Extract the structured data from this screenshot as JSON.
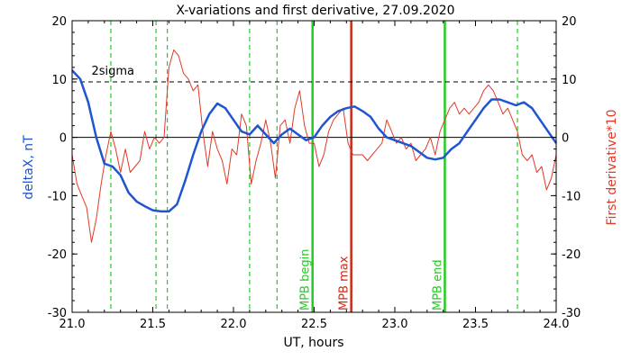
{
  "chart_data": {
    "type": "line",
    "title": "X-variations and first derivative, 27.09.2020",
    "xlabel": "UT, hours",
    "ylabel_left": "deltaX, nT",
    "ylabel_right": "First derivative*10",
    "xlim": [
      21.0,
      24.0
    ],
    "ylim": [
      -30,
      20
    ],
    "x_ticks": [
      "21.0",
      "21.5",
      "22.0",
      "22.5",
      "23.0",
      "23.5",
      "24.0"
    ],
    "y_ticks": [
      "20",
      "10",
      "0",
      "-10",
      "-20",
      "-30"
    ],
    "threshold": {
      "label": "2sigma",
      "value": 9.5
    },
    "zero_line": 0,
    "series": [
      {
        "name": "deltaX, nT",
        "color": "#1f55d0",
        "x": [
          21.0,
          21.05,
          21.1,
          21.15,
          21.2,
          21.25,
          21.3,
          21.35,
          21.4,
          21.45,
          21.5,
          21.55,
          21.6,
          21.65,
          21.7,
          21.75,
          21.8,
          21.85,
          21.9,
          21.95,
          22.0,
          22.05,
          22.1,
          22.15,
          22.2,
          22.25,
          22.3,
          22.35,
          22.4,
          22.45,
          22.5,
          22.55,
          22.6,
          22.65,
          22.7,
          22.75,
          22.8,
          22.85,
          22.9,
          22.95,
          23.0,
          23.05,
          23.1,
          23.15,
          23.2,
          23.25,
          23.3,
          23.35,
          23.4,
          23.45,
          23.5,
          23.55,
          23.6,
          23.65,
          23.7,
          23.75,
          23.8,
          23.85,
          23.9,
          23.95,
          24.0
        ],
        "values": [
          11.5,
          10.0,
          6.0,
          0.0,
          -4.5,
          -5.0,
          -6.5,
          -9.5,
          -11.0,
          -11.8,
          -12.5,
          -12.7,
          -12.7,
          -11.5,
          -7.5,
          -3.0,
          1.0,
          4.0,
          5.8,
          5.0,
          3.0,
          1.0,
          0.5,
          2.0,
          0.5,
          -1.0,
          0.5,
          1.5,
          0.5,
          -0.5,
          0.0,
          2.0,
          3.5,
          4.5,
          5.0,
          5.3,
          4.5,
          3.5,
          1.5,
          0.0,
          -0.5,
          -1.0,
          -1.5,
          -2.5,
          -3.5,
          -3.8,
          -3.5,
          -2.0,
          -1.0,
          1.0,
          3.0,
          5.0,
          6.5,
          6.5,
          6.0,
          5.5,
          6.0,
          5.0,
          3.0,
          1.0,
          -1.0
        ]
      },
      {
        "name": "First derivative*10",
        "color": "#e03a28",
        "x": [
          21.0,
          21.03,
          21.06,
          21.09,
          21.12,
          21.15,
          21.18,
          21.21,
          21.24,
          21.27,
          21.3,
          21.33,
          21.36,
          21.39,
          21.42,
          21.45,
          21.48,
          21.51,
          21.54,
          21.57,
          21.6,
          21.63,
          21.66,
          21.69,
          21.72,
          21.75,
          21.78,
          21.81,
          21.84,
          21.87,
          21.9,
          21.93,
          21.96,
          21.99,
          22.02,
          22.05,
          22.08,
          22.11,
          22.14,
          22.17,
          22.2,
          22.23,
          22.26,
          22.29,
          22.32,
          22.35,
          22.38,
          22.41,
          22.44,
          22.47,
          22.5,
          22.53,
          22.56,
          22.59,
          22.62,
          22.65,
          22.68,
          22.71,
          22.74,
          22.77,
          22.8,
          22.83,
          22.86,
          22.89,
          22.92,
          22.95,
          22.98,
          23.01,
          23.04,
          23.07,
          23.1,
          23.13,
          23.16,
          23.19,
          23.22,
          23.25,
          23.28,
          23.31,
          23.34,
          23.37,
          23.4,
          23.43,
          23.46,
          23.49,
          23.52,
          23.55,
          23.58,
          23.61,
          23.64,
          23.67,
          23.7,
          23.73,
          23.76,
          23.79,
          23.82,
          23.85,
          23.88,
          23.91,
          23.94,
          23.97,
          24.0
        ],
        "values": [
          -3,
          -8,
          -10,
          -12,
          -18,
          -14,
          -8,
          -3,
          1,
          -2,
          -6,
          -2,
          -6,
          -5,
          -4,
          1,
          -2,
          0,
          -1,
          0,
          12,
          15,
          14,
          11,
          10,
          8,
          9,
          1,
          -5,
          1,
          -2,
          -4,
          -8,
          -2,
          -3,
          4,
          2,
          -8,
          -4,
          -1,
          3,
          -1,
          -7,
          2,
          3,
          -1,
          5,
          8,
          2,
          -1,
          -1,
          -5,
          -3,
          1,
          3,
          4,
          5,
          -1,
          -3,
          -3,
          -3,
          -4,
          -3,
          -2,
          -1,
          3,
          1,
          -1,
          0,
          -2,
          -1,
          -4,
          -3,
          -2,
          0,
          -3,
          1,
          3,
          5,
          6,
          4,
          5,
          4,
          5,
          6,
          8,
          9,
          8,
          6,
          4,
          5,
          3,
          1,
          -3,
          -4,
          -3,
          -6,
          -5,
          -9,
          -7,
          -3
        ]
      }
    ],
    "vertical_markers": [
      {
        "x": 21.24,
        "color": "#22cc22",
        "style": "dashed",
        "label": ""
      },
      {
        "x": 21.52,
        "color": "#22cc22",
        "style": "dashed",
        "label": ""
      },
      {
        "x": 21.59,
        "color": "#22cc22",
        "style": "dashed",
        "label": ""
      },
      {
        "x": 22.1,
        "color": "#22cc22",
        "style": "dashed",
        "label": ""
      },
      {
        "x": 22.27,
        "color": "#22cc22",
        "style": "dashed",
        "label": ""
      },
      {
        "x": 22.49,
        "color": "#22cc22",
        "style": "solid",
        "label": "MPB begin"
      },
      {
        "x": 22.73,
        "color": "#cc2a16",
        "style": "solid",
        "label": "MPB max"
      },
      {
        "x": 23.31,
        "color": "#22cc22",
        "style": "solid",
        "label": "MPB end"
      },
      {
        "x": 23.76,
        "color": "#22cc22",
        "style": "dashed",
        "label": ""
      }
    ],
    "grid": false,
    "legend": "none"
  }
}
